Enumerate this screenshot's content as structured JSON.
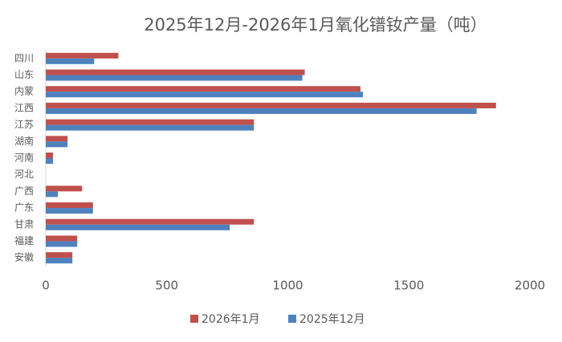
{
  "chart_data": {
    "type": "hbar",
    "title": "2025年12月-2026年1月氧化镨钕产量（吨）",
    "categories": [
      "四川",
      "山东",
      "内蒙",
      "江西",
      "江苏",
      "湖南",
      "河南",
      "河北",
      "广西",
      "广东",
      "甘肃",
      "福建",
      "安徽"
    ],
    "series": [
      {
        "name": "2026年1月",
        "color": "#c0504d",
        "values": [
          300,
          1070,
          1300,
          1860,
          860,
          90,
          30,
          0,
          150,
          195,
          860,
          130,
          110
        ]
      },
      {
        "name": "2025年12月",
        "color": "#4f81bd",
        "values": [
          200,
          1060,
          1310,
          1780,
          860,
          90,
          30,
          0,
          50,
          195,
          760,
          130,
          110
        ]
      }
    ],
    "xlim": [
      0,
      2000
    ],
    "xticks": [
      0,
      500,
      1000,
      1500,
      2000
    ]
  }
}
